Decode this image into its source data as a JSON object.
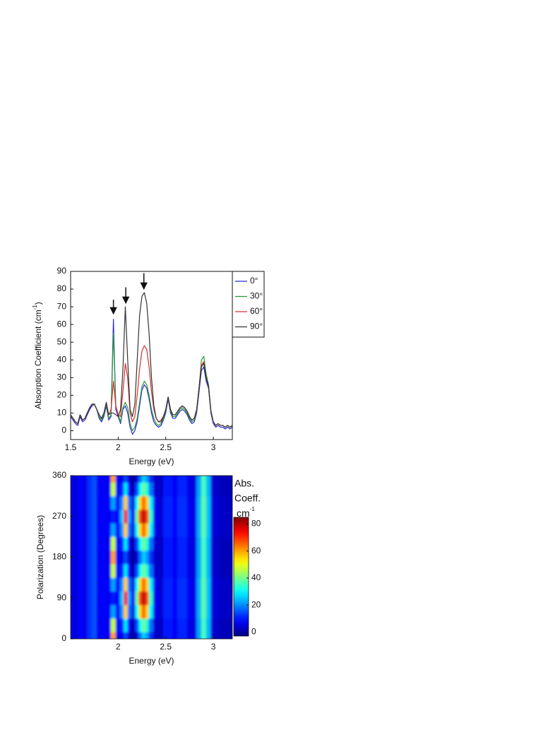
{
  "chart_data": [
    {
      "type": "line",
      "xlabel": "Energy (eV)",
      "ylabel": [
        "Absorption Coefficient (cm",
        "-1",
        ")"
      ],
      "x": [
        1.5,
        1.525,
        1.55,
        1.575,
        1.6,
        1.625,
        1.65,
        1.675,
        1.7,
        1.725,
        1.75,
        1.775,
        1.8,
        1.825,
        1.85,
        1.875,
        1.9,
        1.925,
        1.95,
        1.975,
        2.0,
        2.025,
        2.05,
        2.075,
        2.1,
        2.125,
        2.15,
        2.175,
        2.2,
        2.225,
        2.25,
        2.275,
        2.3,
        2.325,
        2.35,
        2.375,
        2.4,
        2.425,
        2.45,
        2.475,
        2.5,
        2.525,
        2.55,
        2.575,
        2.6,
        2.625,
        2.65,
        2.675,
        2.7,
        2.725,
        2.75,
        2.775,
        2.8,
        2.825,
        2.85,
        2.875,
        2.9,
        2.925,
        2.95,
        2.975,
        3.0,
        3.025,
        3.05,
        3.075,
        3.1,
        3.125,
        3.15,
        3.175,
        3.2
      ],
      "series": [
        {
          "name": "0°",
          "color": "#2b2bd9",
          "values": [
            8,
            6,
            4,
            3,
            8,
            5,
            6,
            9,
            12,
            14,
            15,
            12,
            7,
            5,
            8,
            14,
            6,
            8,
            63,
            12,
            8,
            4,
            12,
            14,
            10,
            2,
            -2,
            0,
            5,
            14,
            23,
            26,
            24,
            18,
            10,
            5,
            3,
            2,
            3,
            6,
            10,
            18,
            10,
            7,
            7,
            9,
            11,
            12,
            11,
            9,
            6,
            4,
            5,
            10,
            22,
            34,
            36,
            28,
            24,
            10,
            4,
            2,
            3,
            2,
            2,
            1,
            2,
            1,
            2
          ]
        },
        {
          "name": "30°",
          "color": "#2a9a3a",
          "values": [
            9,
            7,
            5,
            4,
            9,
            6,
            7,
            10,
            13,
            15,
            15,
            12,
            8,
            6,
            9,
            15,
            7,
            9,
            55,
            14,
            9,
            5,
            13,
            16,
            13,
            4,
            0,
            2,
            7,
            16,
            25,
            28,
            26,
            20,
            12,
            7,
            4,
            3,
            4,
            7,
            11,
            19,
            11,
            8,
            8,
            10,
            12,
            13,
            12,
            10,
            7,
            5,
            6,
            11,
            24,
            40,
            42,
            32,
            26,
            11,
            5,
            3,
            4,
            3,
            3,
            2,
            3,
            2,
            3
          ]
        },
        {
          "name": "60°",
          "color": "#d63030",
          "values": [
            9,
            7,
            5,
            4,
            9,
            6,
            7,
            10,
            13,
            15,
            15,
            12,
            9,
            7,
            10,
            16,
            9,
            12,
            28,
            14,
            9,
            8,
            22,
            38,
            30,
            10,
            5,
            8,
            20,
            35,
            45,
            48,
            46,
            36,
            22,
            12,
            7,
            5,
            6,
            8,
            12,
            19,
            12,
            9,
            9,
            11,
            13,
            14,
            13,
            11,
            8,
            6,
            7,
            12,
            24,
            37,
            39,
            30,
            25,
            11,
            5,
            3,
            4,
            3,
            3,
            2,
            3,
            2,
            3
          ]
        },
        {
          "name": "90°",
          "color": "#333333",
          "values": [
            9,
            7,
            5,
            4,
            9,
            6,
            7,
            10,
            13,
            15,
            15,
            12,
            9,
            7,
            10,
            16,
            9,
            10,
            10,
            9,
            8,
            12,
            35,
            70,
            40,
            12,
            8,
            15,
            40,
            65,
            76,
            78,
            72,
            55,
            30,
            14,
            7,
            5,
            5,
            8,
            12,
            19,
            12,
            9,
            9,
            11,
            13,
            14,
            13,
            11,
            8,
            6,
            7,
            12,
            24,
            36,
            38,
            30,
            25,
            11,
            5,
            3,
            4,
            3,
            3,
            2,
            3,
            2,
            3
          ]
        }
      ],
      "xlim": [
        1.5,
        3.2
      ],
      "xticks": [
        1.5,
        2,
        2.5,
        3
      ],
      "ylim": [
        -5,
        90
      ],
      "yticks": [
        0,
        10,
        20,
        30,
        40,
        50,
        60,
        70,
        80,
        90
      ],
      "legend": "outside-right-top",
      "arrows": [
        {
          "x": 1.95,
          "from": 74,
          "to": 66
        },
        {
          "x": 2.08,
          "from": 81,
          "to": 72
        },
        {
          "x": 2.27,
          "from": 89,
          "to": 80
        }
      ]
    },
    {
      "type": "heatmap",
      "xlabel": "Energy (eV)",
      "ylabel": "Polarization (Degrees)",
      "x": [
        1.5,
        1.55,
        1.6,
        1.65,
        1.7,
        1.75,
        1.8,
        1.85,
        1.9,
        1.95,
        2.0,
        2.04,
        2.08,
        2.12,
        2.16,
        2.2,
        2.235,
        2.27,
        2.305,
        2.34,
        2.4,
        2.45,
        2.5,
        2.55,
        2.6,
        2.65,
        2.7,
        2.75,
        2.8,
        2.85,
        2.9,
        2.95,
        3.0,
        3.05,
        3.1,
        3.15,
        3.2
      ],
      "y": [
        0,
        30,
        60,
        90,
        120,
        150,
        180,
        210,
        240,
        270,
        300,
        330,
        360
      ],
      "values": [
        [
          8,
          4,
          8,
          6,
          12,
          15,
          7,
          8,
          6,
          60,
          8,
          6,
          14,
          4,
          -1,
          5,
          18,
          26,
          22,
          12,
          3,
          3,
          10,
          10,
          7,
          11,
          11,
          6,
          5,
          22,
          36,
          24,
          4,
          3,
          2,
          2,
          2
        ],
        [
          8,
          4,
          8,
          6,
          12,
          15,
          7,
          8,
          6,
          47,
          8,
          11,
          28,
          8,
          1,
          14,
          30,
          40,
          33,
          18,
          4,
          3,
          10,
          10,
          7,
          11,
          11,
          6,
          5,
          22,
          36,
          24,
          4,
          3,
          2,
          2,
          2
        ],
        [
          8,
          4,
          8,
          6,
          12,
          15,
          7,
          8,
          7,
          22,
          8,
          20,
          56,
          18,
          6,
          31,
          55,
          66,
          56,
          29,
          6,
          4,
          11,
          11,
          8,
          12,
          12,
          7,
          6,
          23,
          38,
          25,
          5,
          4,
          3,
          3,
          3
        ],
        [
          8,
          4,
          8,
          6,
          12,
          15,
          7,
          8,
          7,
          10,
          8,
          25,
          70,
          22,
          8,
          40,
          68,
          80,
          68,
          35,
          7,
          5,
          11,
          11,
          8,
          12,
          12,
          7,
          6,
          23,
          38,
          25,
          5,
          4,
          3,
          3,
          3
        ],
        [
          8,
          4,
          8,
          6,
          12,
          15,
          7,
          8,
          7,
          22,
          8,
          20,
          56,
          18,
          6,
          31,
          55,
          66,
          56,
          29,
          6,
          4,
          11,
          11,
          8,
          12,
          12,
          7,
          6,
          23,
          38,
          25,
          5,
          4,
          3,
          3,
          3
        ],
        [
          8,
          4,
          8,
          6,
          12,
          15,
          7,
          8,
          6,
          47,
          8,
          11,
          28,
          8,
          1,
          14,
          30,
          40,
          33,
          18,
          4,
          3,
          10,
          10,
          7,
          11,
          11,
          6,
          5,
          22,
          36,
          24,
          4,
          3,
          2,
          2,
          2
        ],
        [
          8,
          4,
          8,
          6,
          12,
          15,
          7,
          8,
          6,
          60,
          8,
          6,
          14,
          4,
          -1,
          5,
          18,
          26,
          22,
          12,
          3,
          3,
          10,
          10,
          7,
          11,
          11,
          6,
          5,
          22,
          36,
          24,
          4,
          3,
          2,
          2,
          2
        ],
        [
          8,
          4,
          8,
          6,
          12,
          15,
          7,
          8,
          6,
          47,
          8,
          11,
          28,
          8,
          1,
          14,
          30,
          40,
          33,
          18,
          4,
          3,
          10,
          10,
          7,
          11,
          11,
          6,
          5,
          22,
          36,
          24,
          4,
          3,
          2,
          2,
          2
        ],
        [
          8,
          4,
          8,
          6,
          12,
          15,
          7,
          8,
          7,
          22,
          8,
          20,
          56,
          18,
          6,
          31,
          55,
          66,
          56,
          29,
          6,
          4,
          11,
          11,
          8,
          12,
          12,
          7,
          6,
          23,
          38,
          25,
          5,
          4,
          3,
          3,
          3
        ],
        [
          8,
          4,
          8,
          6,
          12,
          15,
          7,
          8,
          7,
          10,
          8,
          25,
          70,
          22,
          8,
          40,
          68,
          80,
          68,
          35,
          7,
          5,
          11,
          11,
          8,
          12,
          12,
          7,
          6,
          23,
          38,
          25,
          5,
          4,
          3,
          3,
          3
        ],
        [
          8,
          4,
          8,
          6,
          12,
          15,
          7,
          8,
          7,
          22,
          8,
          20,
          56,
          18,
          6,
          31,
          55,
          66,
          56,
          29,
          6,
          4,
          11,
          11,
          8,
          12,
          12,
          7,
          6,
          23,
          38,
          25,
          5,
          4,
          3,
          3,
          3
        ],
        [
          8,
          4,
          8,
          6,
          12,
          15,
          7,
          8,
          6,
          47,
          8,
          11,
          28,
          8,
          1,
          14,
          30,
          40,
          33,
          18,
          4,
          3,
          10,
          10,
          7,
          11,
          11,
          6,
          5,
          22,
          36,
          24,
          4,
          3,
          2,
          2,
          2
        ],
        [
          8,
          4,
          8,
          6,
          12,
          15,
          7,
          8,
          6,
          60,
          8,
          6,
          14,
          4,
          -1,
          5,
          18,
          26,
          22,
          12,
          3,
          3,
          10,
          10,
          7,
          11,
          11,
          6,
          5,
          22,
          36,
          24,
          4,
          3,
          2,
          2,
          2
        ]
      ],
      "xlim": [
        1.5,
        3.2
      ],
      "xticks": [
        2,
        2.5,
        3
      ],
      "ylim": [
        0,
        360
      ],
      "yticks": [
        0,
        90,
        180,
        270,
        360
      ],
      "colormap": "jet",
      "clim": [
        -3,
        85
      ],
      "colorbar_ticks": [
        0,
        20,
        40,
        60,
        80
      ],
      "colorbar_label": [
        "Abs.",
        "Coeff."
      ],
      "colorbar_unit": [
        "cm",
        "-1"
      ]
    }
  ]
}
